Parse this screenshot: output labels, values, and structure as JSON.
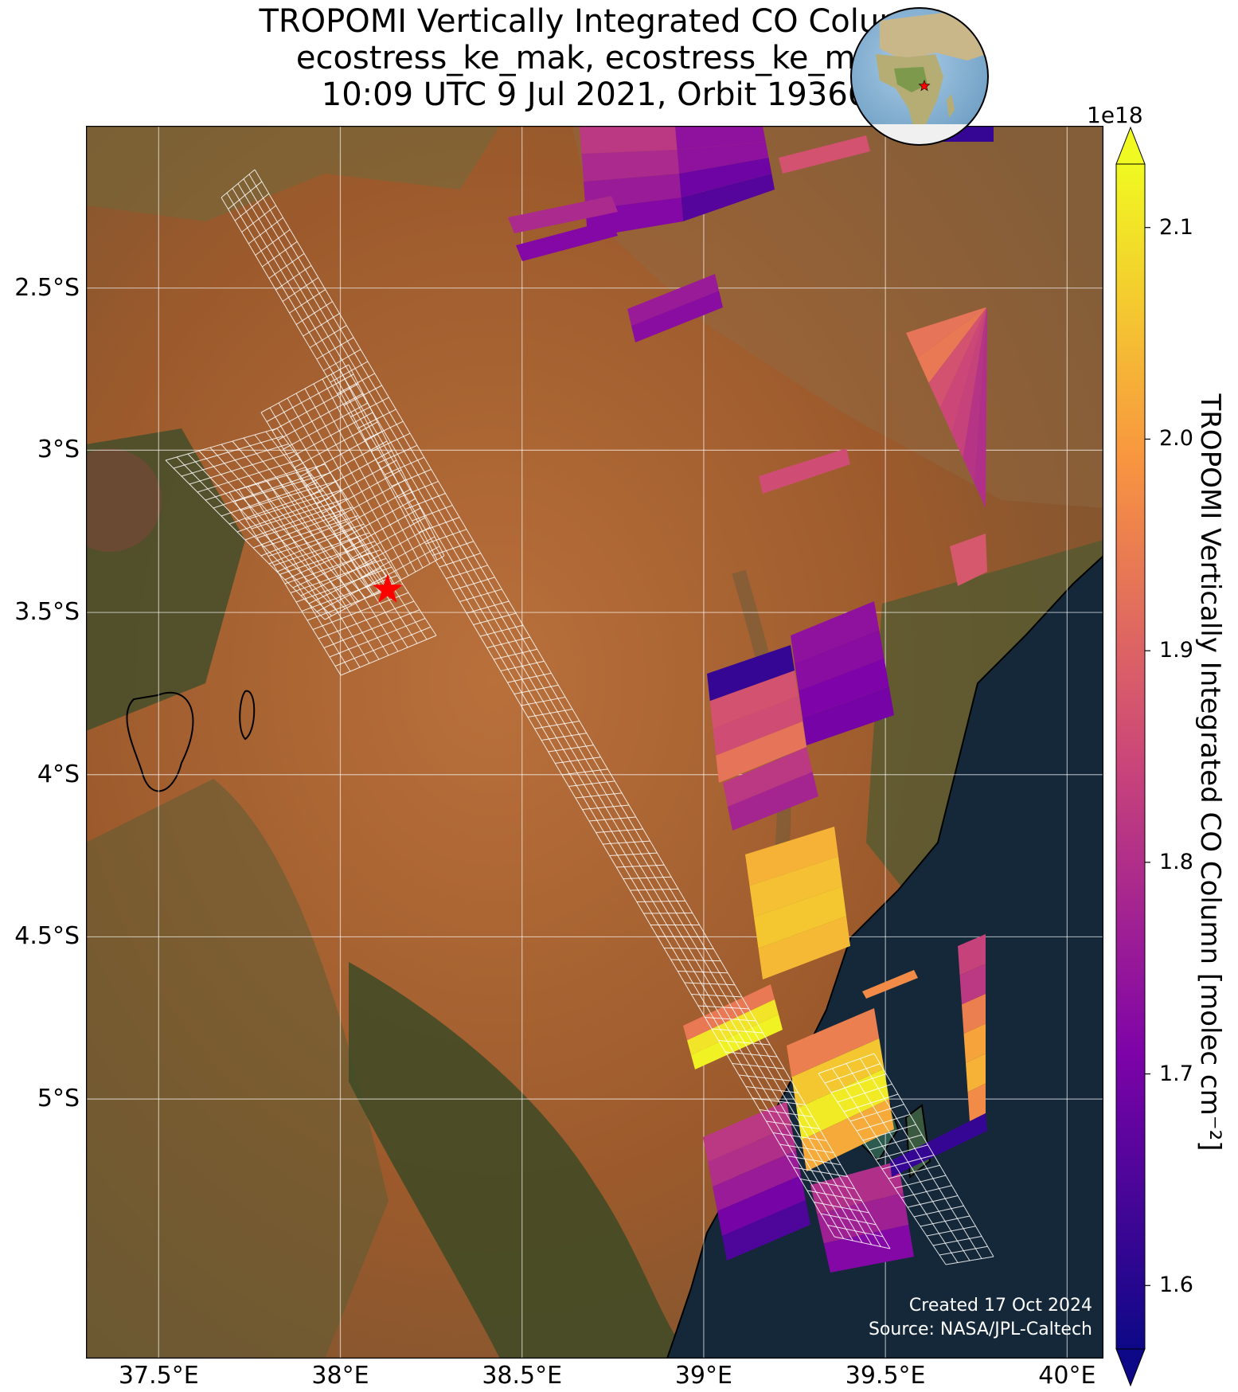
{
  "title": {
    "line1": "TROPOMI Vertically Integrated CO Column",
    "line2": "ecostress_ke_mak, ecostress_ke_mak",
    "line3": "10:09 UTC 9 Jul 2021, Orbit 19366"
  },
  "map": {
    "extent": {
      "lon_min": 37.3,
      "lon_max": 40.1,
      "lat_north": -2.0,
      "lat_south": -5.8
    },
    "lat_ticks": [
      {
        "value": -2.5,
        "label": "2.5°S"
      },
      {
        "value": -3.0,
        "label": "3°S"
      },
      {
        "value": -3.5,
        "label": "3.5°S"
      },
      {
        "value": -4.0,
        "label": "4°S"
      },
      {
        "value": -4.5,
        "label": "4.5°S"
      },
      {
        "value": -5.0,
        "label": "5°S"
      }
    ],
    "lon_ticks": [
      {
        "value": 37.5,
        "label": "37.5°E"
      },
      {
        "value": 38.0,
        "label": "38°E"
      },
      {
        "value": 38.5,
        "label": "38.5°E"
      },
      {
        "value": 39.0,
        "label": "39°E"
      },
      {
        "value": 39.5,
        "label": "39.5°E"
      },
      {
        "value": 40.0,
        "label": "40°E"
      }
    ],
    "target_site": {
      "lon": 38.13,
      "lat": -3.43,
      "marker": "red-star"
    },
    "gridlines": true,
    "basemap": "satellite imagery",
    "colors": {
      "land": "#a8622f",
      "ocean": "#14283a",
      "grid": "#ffffff"
    }
  },
  "credits": {
    "created": "Created 17 Oct 2024",
    "source": "Source: NASA/JPL-Caltech"
  },
  "colorbar": {
    "label": "TROPOMI Vertically Integrated CO Column [molec cm⁻²]",
    "exponent": "1e18",
    "colormap": "plasma",
    "range": [
      1.57,
      2.13
    ],
    "ticks": [
      {
        "value": 1.6,
        "label": "1.6"
      },
      {
        "value": 1.7,
        "label": "1.7"
      },
      {
        "value": 1.8,
        "label": "1.8"
      },
      {
        "value": 1.9,
        "label": "1.9"
      },
      {
        "value": 2.0,
        "label": "2.0"
      },
      {
        "value": 2.1,
        "label": "2.1"
      }
    ]
  },
  "inset_globe": {
    "center_lon": 20,
    "center_lat": 5,
    "marker": "red-star"
  }
}
